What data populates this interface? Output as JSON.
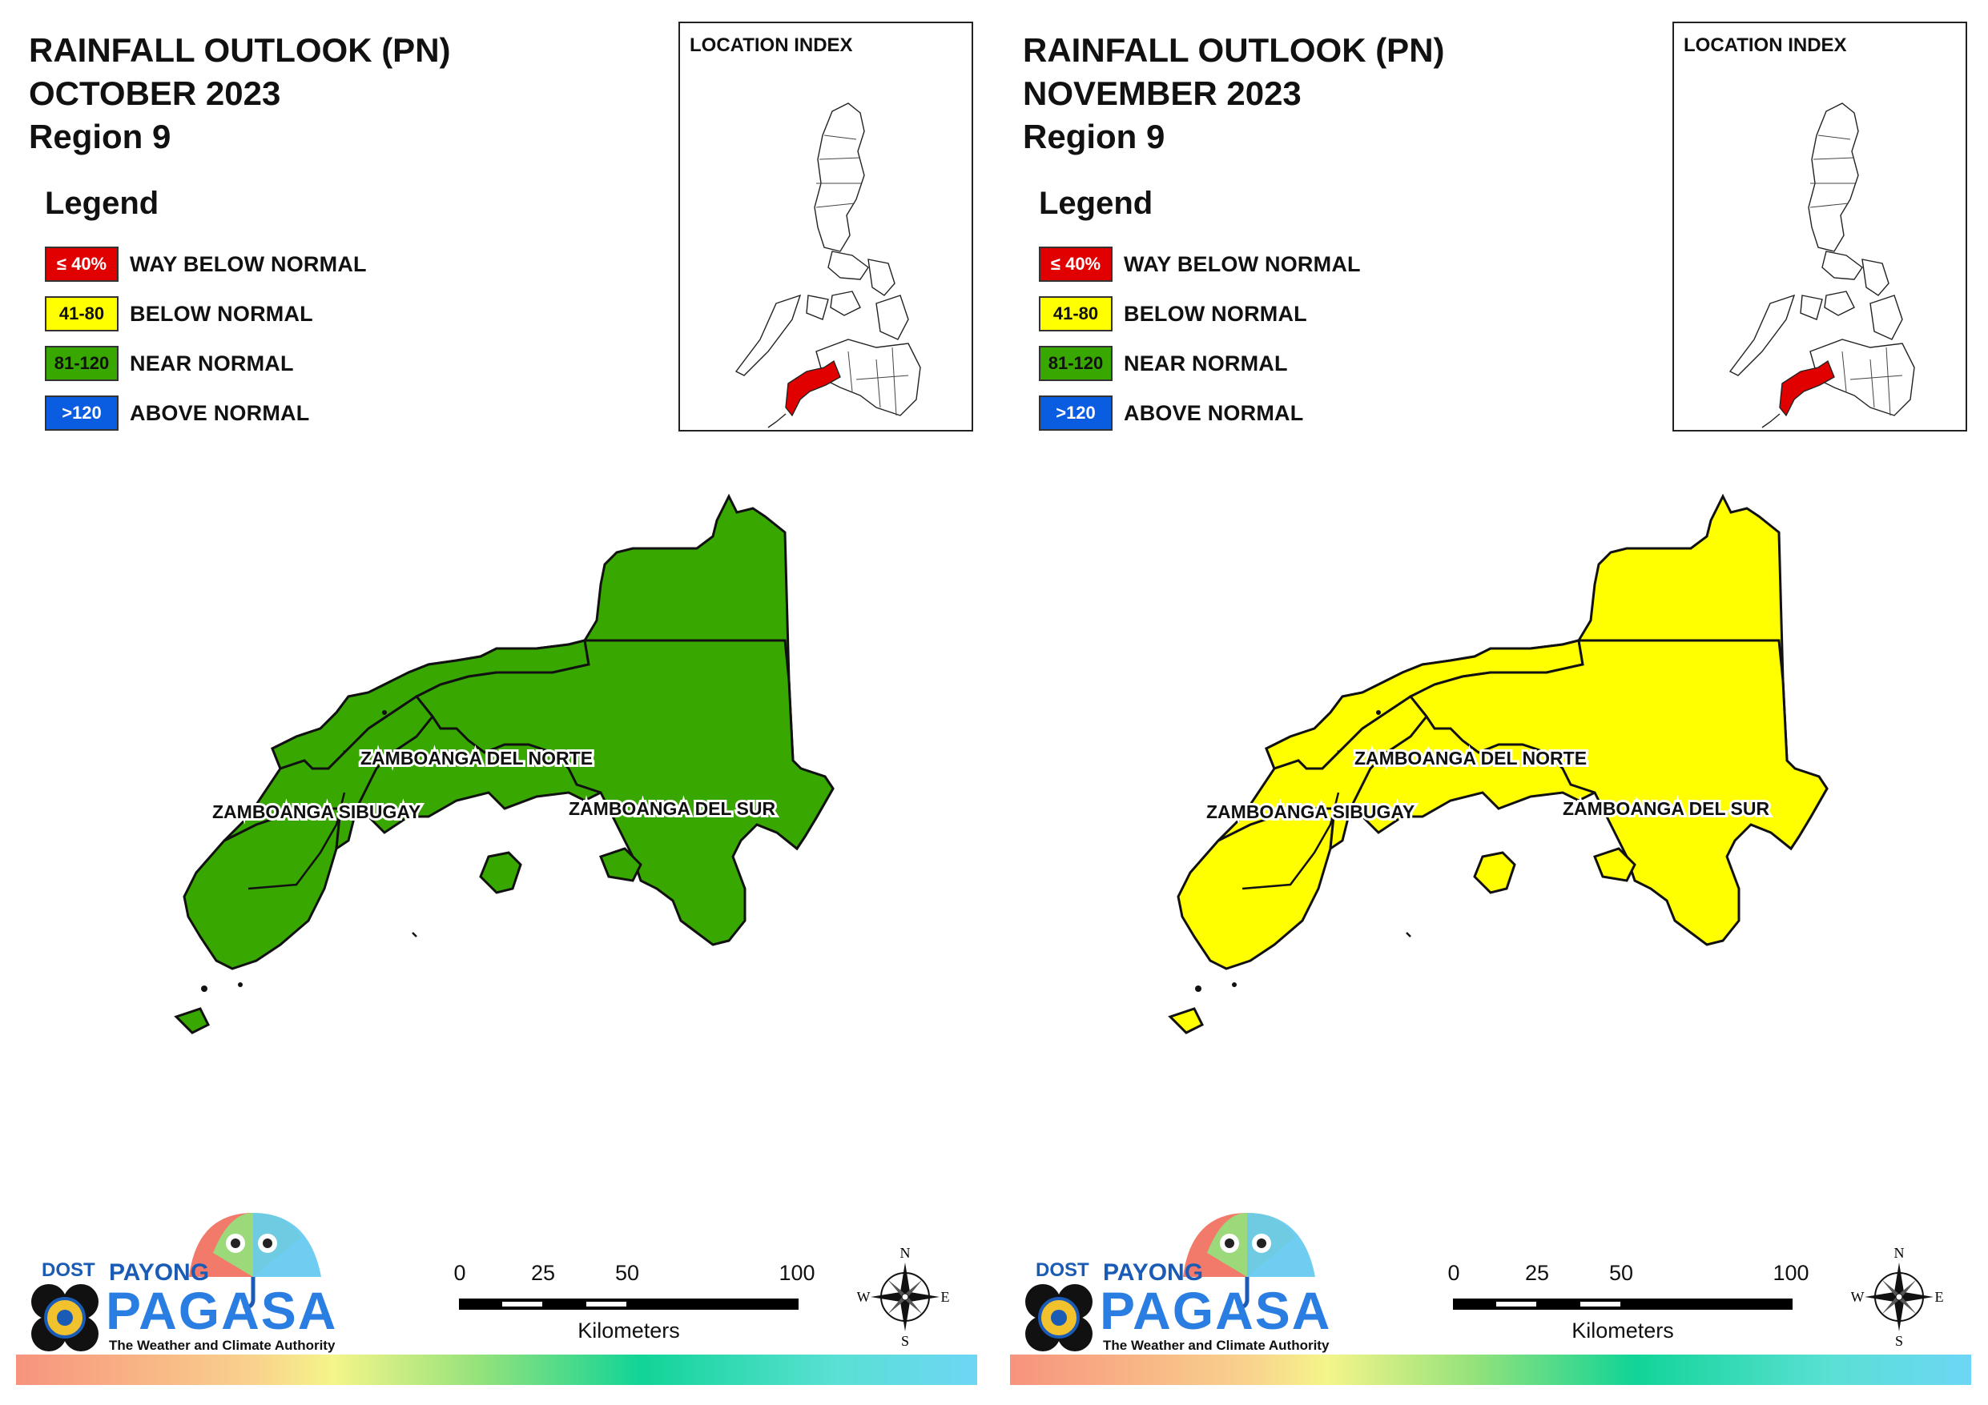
{
  "panels": [
    {
      "title_line1": "RAINFALL OUTLOOK (PN)",
      "title_line2": "OCTOBER 2023",
      "title_line3": "Region 9",
      "fill_color": "#38a800",
      "category": "NEAR NORMAL"
    },
    {
      "title_line1": "RAINFALL OUTLOOK (PN)",
      "title_line2": "NOVEMBER 2023",
      "title_line3": "Region 9",
      "fill_color": "#ffff00",
      "category": "BELOW NORMAL"
    }
  ],
  "legend": {
    "heading": "Legend",
    "items": [
      {
        "range": "≤ 40%",
        "label": "WAY BELOW NORMAL",
        "color": "#e00000",
        "text_color": "#ffffff"
      },
      {
        "range": "41-80",
        "label": "BELOW NORMAL",
        "color": "#ffff00",
        "text_color": "#111111"
      },
      {
        "range": "81-120",
        "label": "NEAR NORMAL",
        "color": "#38a800",
        "text_color": "#111111"
      },
      {
        "range": ">120",
        "label": "ABOVE NORMAL",
        "color": "#0a5ce0",
        "text_color": "#ffffff"
      }
    ]
  },
  "location_index": {
    "title": "LOCATION INDEX",
    "highlight_color": "#e00000"
  },
  "provinces": {
    "norte": "ZAMBOANGA DEL NORTE",
    "sibugay": "ZAMBOANGA SIBUGAY",
    "sur": "ZAMBOANGA DEL SUR"
  },
  "scale": {
    "ticks": [
      "0",
      "25",
      "50",
      "100"
    ],
    "unit": "Kilometers"
  },
  "compass": {
    "n": "N",
    "s": "S",
    "e": "E",
    "w": "W"
  },
  "logo": {
    "dost": "DOST",
    "payong": "PAYONG",
    "pagasa": "PAGASA",
    "tagline": "The Weather and Climate Authority"
  }
}
